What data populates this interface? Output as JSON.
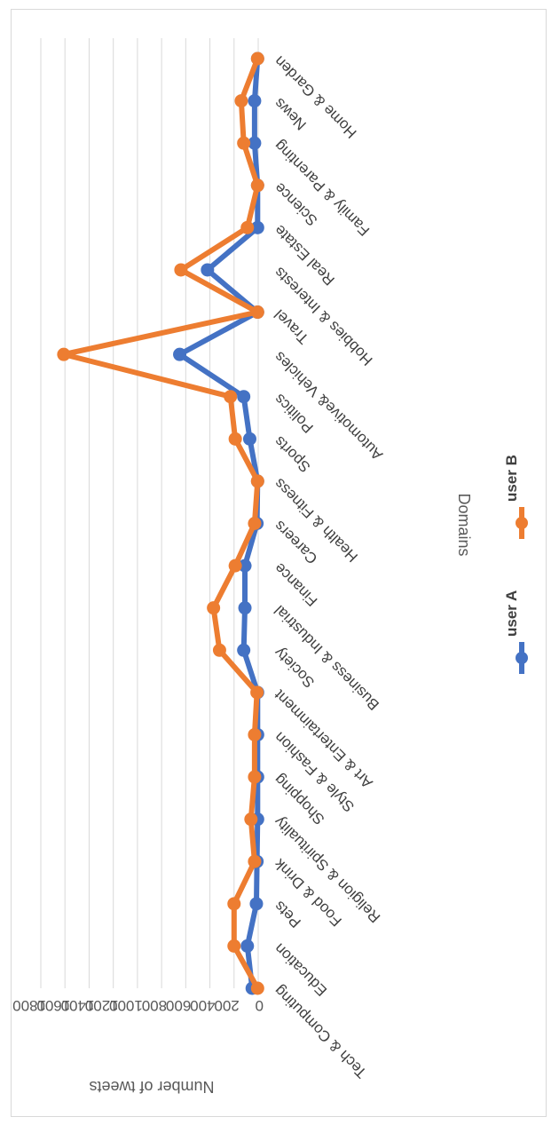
{
  "chart_data": {
    "type": "line",
    "title": "",
    "xlabel": "Domains",
    "ylabel": "Number of tweets",
    "ylim": [
      0,
      1800
    ],
    "yticks": [
      "0",
      "200",
      "400",
      "600",
      "800",
      "1000",
      "1200",
      "1400",
      "1600",
      "1800"
    ],
    "grid": true,
    "legend": "bottom",
    "orientation": "rotated 180 degrees",
    "categories": [
      "Tech & Computing",
      "Education",
      "Pets",
      "Food & Drink",
      "Religion & Spirituality",
      "Shopping",
      "Style & Fashion",
      "Art & Entertainment",
      "Society",
      "Business & Industrial",
      "Finance",
      "Careers",
      "Health & Fitness",
      "Sports",
      "Politics",
      "Automotive& Vehicles",
      "Travel",
      "Hobbies & Interests",
      "Real Estate",
      "Science",
      "Family & Parenting",
      "News",
      "Home & Garden"
    ],
    "series": [
      {
        "name": "user A",
        "color": "#4472c4",
        "values": [
          50,
          90,
          15,
          10,
          5,
          5,
          5,
          5,
          120,
          110,
          110,
          10,
          5,
          70,
          120,
          650,
          5,
          420,
          5,
          5,
          30,
          30,
          5
        ]
      },
      {
        "name": "user B",
        "color": "#ed7d31",
        "values": [
          5,
          200,
          200,
          30,
          60,
          30,
          30,
          10,
          320,
          370,
          190,
          30,
          5,
          190,
          230,
          1610,
          5,
          640,
          90,
          5,
          120,
          140,
          5
        ]
      }
    ]
  }
}
